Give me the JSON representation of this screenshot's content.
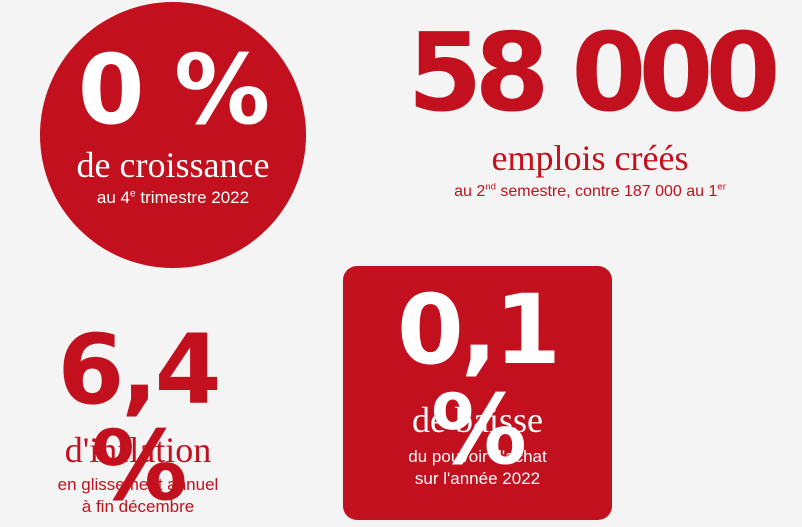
{
  "stats": {
    "growth": {
      "value": "0 %",
      "label": "de croissance",
      "detail_pre": "au 4",
      "detail_sup": "e",
      "detail_post": " trimestre 2022"
    },
    "jobs": {
      "value": "58 000",
      "label": "emplois créés",
      "detail_pre": "au 2",
      "detail_sup1": "nd",
      "detail_mid": " semestre, contre 187 000 au 1",
      "detail_sup2": "er"
    },
    "inflation": {
      "value": "6,4 %",
      "label": "d'inflation",
      "detail_line1": "en glissement annuel",
      "detail_line2": "à fin décembre"
    },
    "purchasing_power": {
      "value": "0,1 %",
      "label": "de baisse",
      "detail_line1": "du pouvoir d'achat",
      "detail_line2": "sur l'année 2022"
    }
  },
  "colors": {
    "accent": "#c3101e",
    "background": "#f4f4f4",
    "on_accent": "#ffffff"
  }
}
